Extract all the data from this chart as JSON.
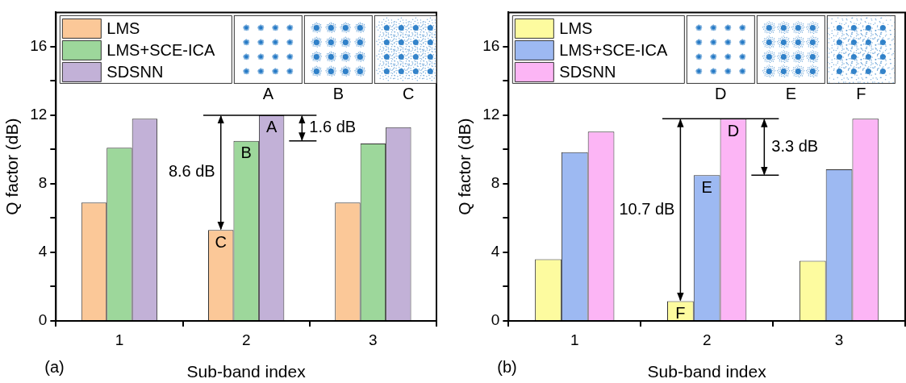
{
  "chart_data": [
    {
      "type": "bar",
      "xlabel": "Sub-band index",
      "ylabel": "Q factor (dB)",
      "categories": [
        "1",
        "2",
        "3"
      ],
      "ylim": [
        0,
        18
      ],
      "yticks": [
        0,
        {
          "value": 2,
          "label": null
        },
        4,
        {
          "value": 6,
          "label": null
        },
        8,
        {
          "value": 10,
          "label": null
        },
        12,
        {
          "value": 14,
          "label": null
        },
        16
      ],
      "series": [
        {
          "name": "LMS",
          "color": "#fbc898",
          "values": [
            6.9,
            5.3,
            6.9
          ],
          "value_labels": [
            null,
            "C",
            null
          ]
        },
        {
          "name": "LMS+SCE-ICA",
          "color": "#9dd79b",
          "values": [
            10.1,
            10.5,
            10.35
          ],
          "value_labels": [
            null,
            "B",
            null
          ]
        },
        {
          "name": "SDSNN",
          "color": "#c2b1d7",
          "values": [
            11.8,
            12.0,
            11.3
          ],
          "value_labels": [
            null,
            "A",
            null
          ]
        }
      ],
      "legend": "top left",
      "grid": false,
      "annotations": [
        "8.6 dB",
        "1.6 dB",
        "A",
        "B",
        "C",
        "(a)"
      ]
    },
    {
      "type": "bar",
      "xlabel": "Sub-band index",
      "ylabel": "Q factor (dB)",
      "categories": [
        "1",
        "2",
        "3"
      ],
      "ylim": [
        0,
        18
      ],
      "yticks": [
        0,
        {
          "value": 2,
          "label": null
        },
        4,
        {
          "value": 6,
          "label": null
        },
        8,
        {
          "value": 10,
          "label": null
        },
        12,
        {
          "value": 14,
          "label": null
        },
        16
      ],
      "series": [
        {
          "name": "LMS",
          "color": "#fdfb9f",
          "values": [
            3.6,
            1.15,
            3.5
          ],
          "value_labels": [
            null,
            "F",
            null
          ]
        },
        {
          "name": "LMS+SCE-ICA",
          "color": "#9db9f2",
          "values": [
            9.85,
            8.5,
            8.85
          ],
          "value_labels": [
            null,
            "E",
            null
          ]
        },
        {
          "name": "SDSNN",
          "color": "#fcb5f5",
          "values": [
            11.05,
            11.8,
            11.8
          ],
          "value_labels": [
            null,
            "D",
            null
          ]
        }
      ],
      "legend": "top left",
      "grid": false,
      "annotations": [
        "10.7 dB",
        "3.3 dB",
        "D",
        "E",
        "F",
        "(b)"
      ]
    }
  ]
}
